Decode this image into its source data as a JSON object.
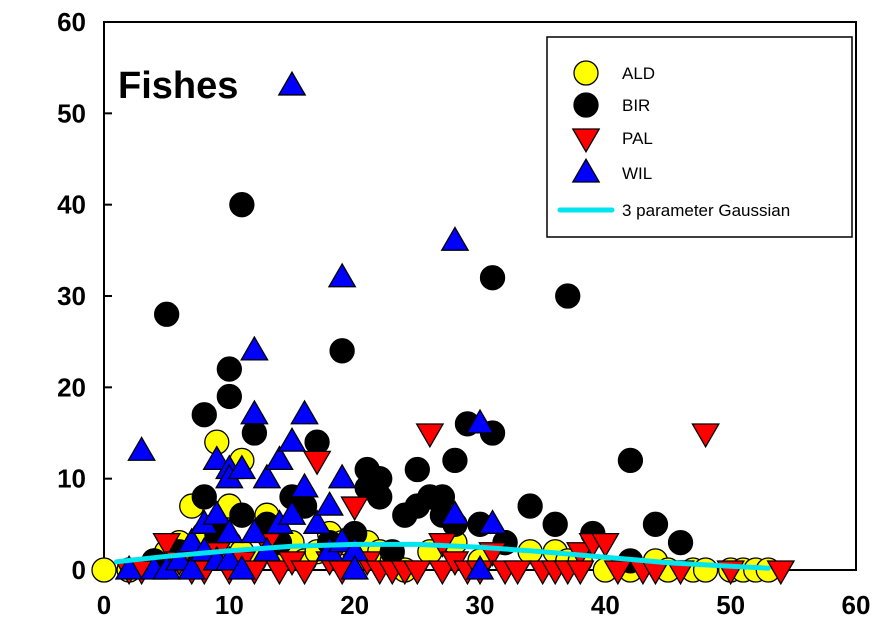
{
  "chart_data": {
    "type": "scatter",
    "title": "",
    "annotation": "Fishes",
    "xlabel": "",
    "ylabel": "",
    "xlim": [
      0,
      60
    ],
    "ylim": [
      0,
      60
    ],
    "xticks": [
      0,
      10,
      20,
      30,
      40,
      50,
      60
    ],
    "yticks": [
      0,
      10,
      20,
      30,
      40,
      50,
      60
    ],
    "grid": false,
    "legend_position": "top-right",
    "series": [
      {
        "name": "ALD",
        "marker": "circle",
        "color": "#ffff00",
        "points": [
          [
            0,
            0
          ],
          [
            2,
            0
          ],
          [
            4,
            1
          ],
          [
            5,
            2
          ],
          [
            6,
            3
          ],
          [
            7,
            7
          ],
          [
            8,
            4
          ],
          [
            8,
            1
          ],
          [
            9,
            14
          ],
          [
            9,
            5
          ],
          [
            10,
            7
          ],
          [
            10,
            3
          ],
          [
            11,
            12
          ],
          [
            11,
            2
          ],
          [
            12,
            1
          ],
          [
            13,
            6
          ],
          [
            14,
            2
          ],
          [
            15,
            3
          ],
          [
            16,
            1
          ],
          [
            17,
            2
          ],
          [
            18,
            4
          ],
          [
            19,
            3
          ],
          [
            20,
            1
          ],
          [
            21,
            3
          ],
          [
            22,
            2
          ],
          [
            23,
            1
          ],
          [
            24,
            0
          ],
          [
            26,
            2
          ],
          [
            28,
            3
          ],
          [
            30,
            1
          ],
          [
            32,
            3
          ],
          [
            34,
            2
          ],
          [
            36,
            2
          ],
          [
            37,
            1
          ],
          [
            38,
            1
          ],
          [
            40,
            0
          ],
          [
            42,
            0
          ],
          [
            44,
            1
          ],
          [
            45,
            0
          ],
          [
            47,
            0
          ],
          [
            48,
            0
          ],
          [
            50,
            0
          ],
          [
            51,
            0
          ],
          [
            52,
            0
          ],
          [
            53,
            0
          ]
        ]
      },
      {
        "name": "BIR",
        "marker": "circle",
        "color": "#000000",
        "points": [
          [
            4,
            1
          ],
          [
            5,
            28
          ],
          [
            6,
            2
          ],
          [
            8,
            17
          ],
          [
            8,
            8
          ],
          [
            9,
            4
          ],
          [
            10,
            22
          ],
          [
            10,
            19
          ],
          [
            11,
            40
          ],
          [
            11,
            6
          ],
          [
            12,
            15
          ],
          [
            13,
            5
          ],
          [
            14,
            3
          ],
          [
            15,
            8
          ],
          [
            16,
            7
          ],
          [
            17,
            14
          ],
          [
            18,
            3
          ],
          [
            19,
            24
          ],
          [
            20,
            4
          ],
          [
            21,
            11
          ],
          [
            21,
            9
          ],
          [
            22,
            10
          ],
          [
            22,
            8
          ],
          [
            23,
            2
          ],
          [
            24,
            6
          ],
          [
            25,
            11
          ],
          [
            25,
            7
          ],
          [
            26,
            8
          ],
          [
            27,
            6
          ],
          [
            27,
            8
          ],
          [
            28,
            12
          ],
          [
            28,
            5
          ],
          [
            29,
            16
          ],
          [
            30,
            5
          ],
          [
            31,
            32
          ],
          [
            31,
            15
          ],
          [
            32,
            3
          ],
          [
            34,
            7
          ],
          [
            36,
            5
          ],
          [
            37,
            30
          ],
          [
            39,
            4
          ],
          [
            42,
            12
          ],
          [
            42,
            1
          ],
          [
            44,
            5
          ],
          [
            46,
            3
          ]
        ]
      },
      {
        "name": "PAL",
        "marker": "triangle-down",
        "color": "#ff0000",
        "points": [
          [
            2,
            0
          ],
          [
            3,
            0
          ],
          [
            5,
            3
          ],
          [
            6,
            1
          ],
          [
            7,
            0
          ],
          [
            8,
            0
          ],
          [
            9,
            2
          ],
          [
            10,
            0
          ],
          [
            11,
            1
          ],
          [
            12,
            0
          ],
          [
            13,
            3
          ],
          [
            14,
            0
          ],
          [
            15,
            1
          ],
          [
            16,
            0
          ],
          [
            17,
            12
          ],
          [
            18,
            1
          ],
          [
            19,
            0
          ],
          [
            20,
            7
          ],
          [
            21,
            1
          ],
          [
            22,
            0
          ],
          [
            23,
            0
          ],
          [
            24,
            0
          ],
          [
            25,
            0
          ],
          [
            26,
            15
          ],
          [
            27,
            3
          ],
          [
            27,
            0
          ],
          [
            28,
            1
          ],
          [
            29,
            0
          ],
          [
            30,
            0
          ],
          [
            31,
            2
          ],
          [
            32,
            0
          ],
          [
            33,
            0
          ],
          [
            35,
            0
          ],
          [
            36,
            0
          ],
          [
            37,
            0
          ],
          [
            38,
            2
          ],
          [
            38,
            0
          ],
          [
            39,
            3
          ],
          [
            40,
            3
          ],
          [
            41,
            0
          ],
          [
            43,
            0
          ],
          [
            44,
            0
          ],
          [
            46,
            0
          ],
          [
            48,
            15
          ],
          [
            50,
            0
          ],
          [
            54,
            0
          ]
        ]
      },
      {
        "name": "WIL",
        "marker": "triangle-up",
        "color": "#0000ff",
        "points": [
          [
            2,
            0
          ],
          [
            3,
            13
          ],
          [
            4,
            0
          ],
          [
            5,
            0
          ],
          [
            6,
            1
          ],
          [
            7,
            0
          ],
          [
            7,
            3
          ],
          [
            8,
            2
          ],
          [
            8,
            5
          ],
          [
            9,
            12
          ],
          [
            9,
            6
          ],
          [
            9,
            1
          ],
          [
            10,
            11
          ],
          [
            10,
            10
          ],
          [
            10,
            4
          ],
          [
            10,
            1
          ],
          [
            11,
            11
          ],
          [
            11,
            0
          ],
          [
            12,
            24
          ],
          [
            12,
            17
          ],
          [
            12,
            4
          ],
          [
            13,
            10
          ],
          [
            13,
            2
          ],
          [
            14,
            12
          ],
          [
            14,
            5
          ],
          [
            15,
            53
          ],
          [
            15,
            14
          ],
          [
            15,
            6
          ],
          [
            16,
            17
          ],
          [
            16,
            9
          ],
          [
            17,
            5
          ],
          [
            18,
            7
          ],
          [
            18,
            2
          ],
          [
            19,
            32
          ],
          [
            19,
            10
          ],
          [
            19,
            3
          ],
          [
            20,
            2
          ],
          [
            20,
            0
          ],
          [
            28,
            36
          ],
          [
            28,
            6
          ],
          [
            30,
            0
          ],
          [
            30,
            16
          ],
          [
            31,
            5
          ]
        ]
      }
    ],
    "fit": {
      "name": "3 parameter Gaussian",
      "color": "#00e5ee",
      "points": [
        [
          1,
          0.9
        ],
        [
          5,
          1.5
        ],
        [
          10,
          2.1
        ],
        [
          15,
          2.6
        ],
        [
          20,
          2.8
        ],
        [
          25,
          2.8
        ],
        [
          30,
          2.5
        ],
        [
          35,
          2.0
        ],
        [
          40,
          1.4
        ],
        [
          45,
          0.8
        ],
        [
          50,
          0.4
        ],
        [
          53,
          0.2
        ]
      ]
    }
  }
}
